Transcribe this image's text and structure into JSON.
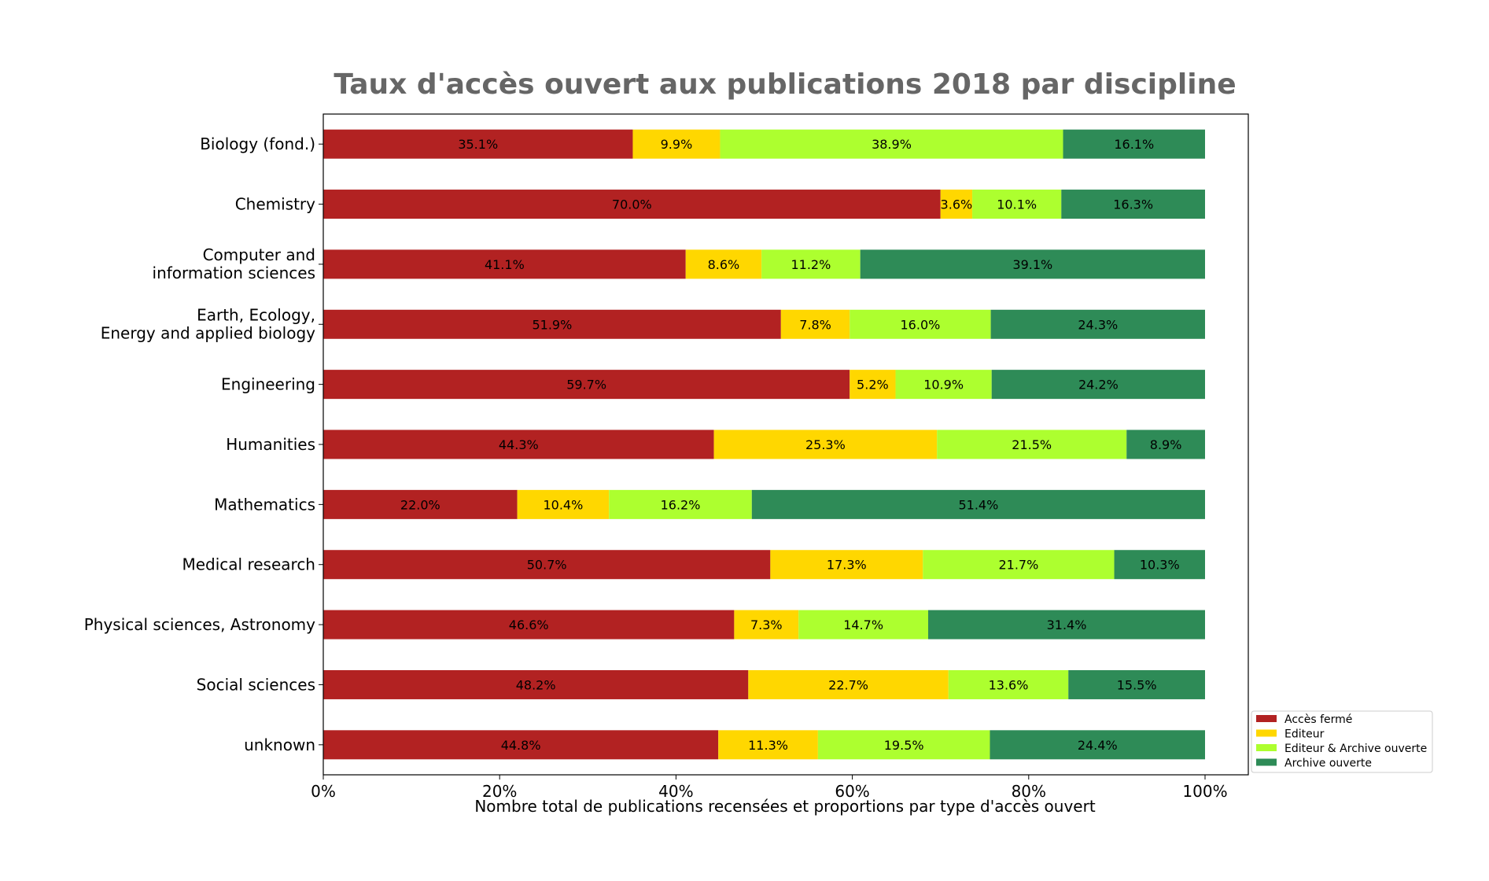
{
  "chart_data": {
    "type": "bar",
    "orientation": "horizontal",
    "stacked": true,
    "title": "Taux d'accès ouvert aux publications 2018 par discipline",
    "xlabel": "Nombre total de publications recensées et proportions par type d'accès ouvert",
    "ylabel": "",
    "xlim": [
      0,
      105
    ],
    "x_ticks": [
      "0%",
      "20%",
      "40%",
      "60%",
      "80%",
      "100%"
    ],
    "legend_position": "bottom-right",
    "grid": false,
    "categories": [
      [
        "Biology (fond.)"
      ],
      [
        "Chemistry"
      ],
      [
        "Computer and",
        "information sciences"
      ],
      [
        "Earth, Ecology,",
        "Energy and applied biology"
      ],
      [
        "Engineering"
      ],
      [
        "Humanities"
      ],
      [
        "Mathematics"
      ],
      [
        "Medical research"
      ],
      [
        "Physical sciences, Astronomy"
      ],
      [
        "Social sciences"
      ],
      [
        "unknown"
      ]
    ],
    "series": [
      {
        "name": "Accès fermé",
        "color": "#b22222",
        "values": [
          35.1,
          70.0,
          41.1,
          51.9,
          59.7,
          44.3,
          22.0,
          50.7,
          46.6,
          48.2,
          44.8
        ]
      },
      {
        "name": "Editeur",
        "color": "#ffd700",
        "values": [
          9.9,
          3.6,
          8.6,
          7.8,
          5.2,
          25.3,
          10.4,
          17.3,
          7.3,
          22.7,
          11.3
        ]
      },
      {
        "name": "Editeur & Archive ouverte",
        "color": "#adff2f",
        "values": [
          38.9,
          10.1,
          11.2,
          16.0,
          10.9,
          21.5,
          16.2,
          21.7,
          14.7,
          13.6,
          19.5
        ]
      },
      {
        "name": "Archive ouverte",
        "color": "#2e8b57",
        "values": [
          16.1,
          16.3,
          39.1,
          24.3,
          24.2,
          8.9,
          51.4,
          10.3,
          31.4,
          15.5,
          24.4
        ]
      }
    ]
  }
}
